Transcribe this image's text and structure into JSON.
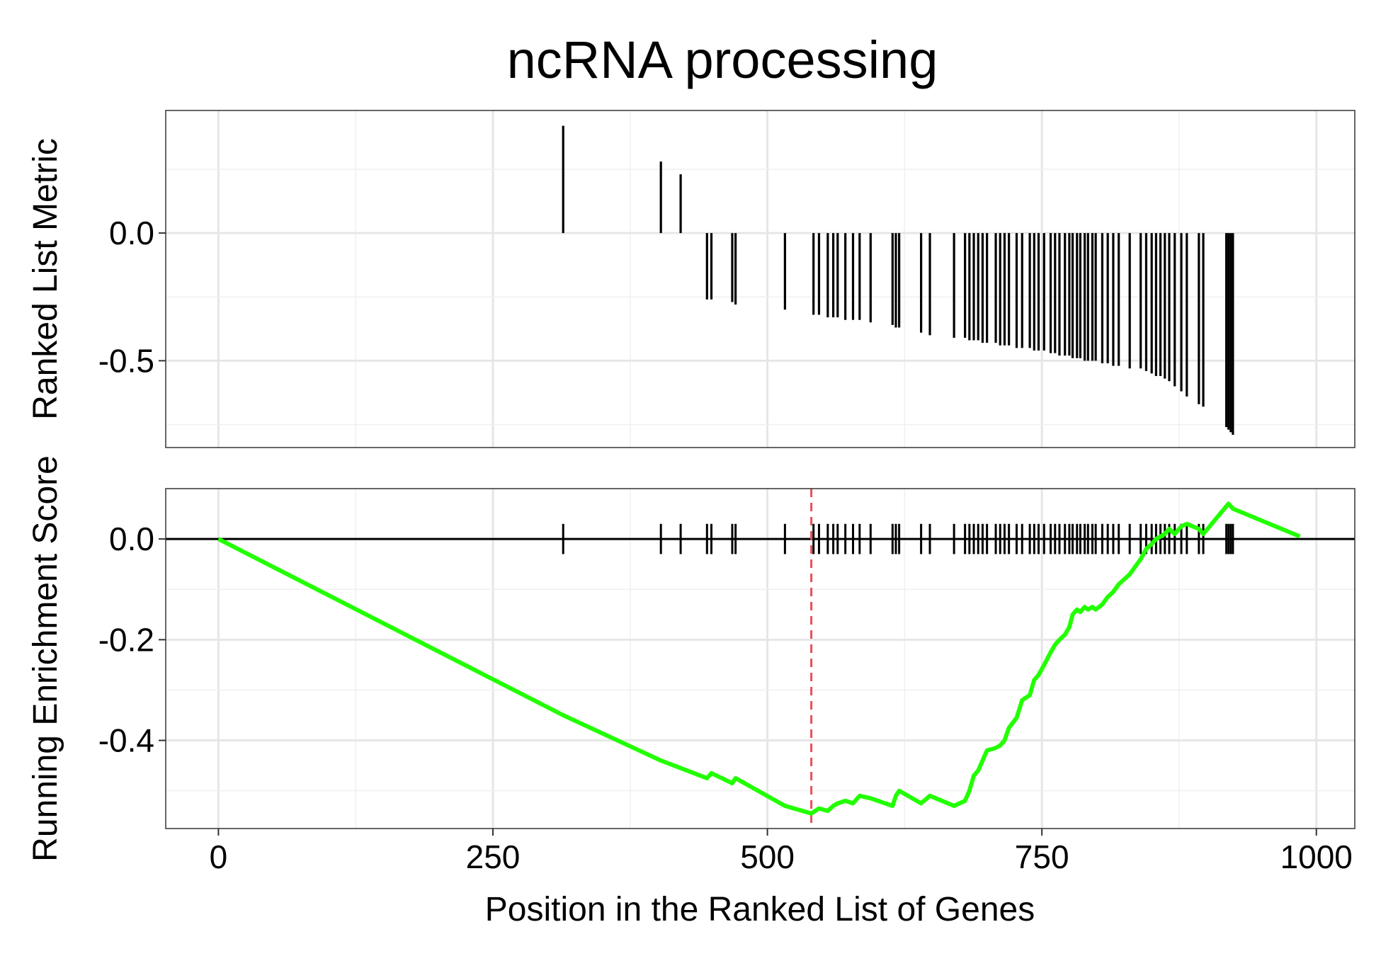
{
  "chart_data": {
    "title": "ncRNA processing",
    "xlabel": "Position in the Ranked List of Genes",
    "xlim": [
      -48,
      1035
    ],
    "x_ticks": [
      0,
      250,
      500,
      750,
      1000
    ],
    "x_tick_labels": [
      "0",
      "250",
      "500",
      "750",
      "1000"
    ],
    "grid": true,
    "panels": [
      {
        "name": "ranked-list-metric",
        "type": "bar",
        "ylabel": "Ranked List Metric",
        "ylim": [
          -0.84,
          0.48
        ],
        "y_ticks": [
          0.0,
          -0.5
        ],
        "y_tick_labels": [
          "0.0",
          "-0.5"
        ],
        "bars": [
          {
            "x": 314,
            "y": 0.42
          },
          {
            "x": 403,
            "y": 0.28
          },
          {
            "x": 421,
            "y": 0.23
          },
          {
            "x": 445,
            "y": -0.26
          },
          {
            "x": 449,
            "y": -0.26
          },
          {
            "x": 468,
            "y": -0.27
          },
          {
            "x": 471,
            "y": -0.28
          },
          {
            "x": 516,
            "y": -0.3
          },
          {
            "x": 542,
            "y": -0.32
          },
          {
            "x": 547,
            "y": -0.32
          },
          {
            "x": 555,
            "y": -0.33
          },
          {
            "x": 560,
            "y": -0.33
          },
          {
            "x": 564,
            "y": -0.33
          },
          {
            "x": 571,
            "y": -0.34
          },
          {
            "x": 578,
            "y": -0.34
          },
          {
            "x": 584,
            "y": -0.34
          },
          {
            "x": 594,
            "y": -0.35
          },
          {
            "x": 614,
            "y": -0.36
          },
          {
            "x": 617,
            "y": -0.37
          },
          {
            "x": 620,
            "y": -0.37
          },
          {
            "x": 640,
            "y": -0.39
          },
          {
            "x": 648,
            "y": -0.4
          },
          {
            "x": 670,
            "y": -0.41
          },
          {
            "x": 680,
            "y": -0.41
          },
          {
            "x": 684,
            "y": -0.42
          },
          {
            "x": 688,
            "y": -0.42
          },
          {
            "x": 692,
            "y": -0.42
          },
          {
            "x": 696,
            "y": -0.43
          },
          {
            "x": 700,
            "y": -0.43
          },
          {
            "x": 708,
            "y": -0.43
          },
          {
            "x": 712,
            "y": -0.44
          },
          {
            "x": 716,
            "y": -0.44
          },
          {
            "x": 720,
            "y": -0.44
          },
          {
            "x": 727,
            "y": -0.45
          },
          {
            "x": 732,
            "y": -0.45
          },
          {
            "x": 739,
            "y": -0.45
          },
          {
            "x": 743,
            "y": -0.46
          },
          {
            "x": 747,
            "y": -0.46
          },
          {
            "x": 752,
            "y": -0.46
          },
          {
            "x": 758,
            "y": -0.47
          },
          {
            "x": 762,
            "y": -0.47
          },
          {
            "x": 766,
            "y": -0.48
          },
          {
            "x": 771,
            "y": -0.48
          },
          {
            "x": 775,
            "y": -0.48
          },
          {
            "x": 778,
            "y": -0.49
          },
          {
            "x": 782,
            "y": -0.49
          },
          {
            "x": 785,
            "y": -0.49
          },
          {
            "x": 789,
            "y": -0.5
          },
          {
            "x": 792,
            "y": -0.5
          },
          {
            "x": 796,
            "y": -0.5
          },
          {
            "x": 799,
            "y": -0.5
          },
          {
            "x": 805,
            "y": -0.51
          },
          {
            "x": 810,
            "y": -0.51
          },
          {
            "x": 815,
            "y": -0.52
          },
          {
            "x": 820,
            "y": -0.52
          },
          {
            "x": 830,
            "y": -0.53
          },
          {
            "x": 840,
            "y": -0.53
          },
          {
            "x": 845,
            "y": -0.54
          },
          {
            "x": 850,
            "y": -0.55
          },
          {
            "x": 854,
            "y": -0.56
          },
          {
            "x": 858,
            "y": -0.56
          },
          {
            "x": 862,
            "y": -0.57
          },
          {
            "x": 866,
            "y": -0.58
          },
          {
            "x": 871,
            "y": -0.6
          },
          {
            "x": 877,
            "y": -0.62
          },
          {
            "x": 882,
            "y": -0.64
          },
          {
            "x": 893,
            "y": -0.67
          },
          {
            "x": 897,
            "y": -0.68
          },
          {
            "x": 918,
            "y": -0.76
          },
          {
            "x": 920,
            "y": -0.77
          },
          {
            "x": 922,
            "y": -0.78
          },
          {
            "x": 924,
            "y": -0.79
          }
        ]
      },
      {
        "name": "running-enrichment-score",
        "type": "line",
        "ylabel": "Running Enrichment Score",
        "ylim": [
          -0.575,
          0.1
        ],
        "y_ticks": [
          0.0,
          -0.2,
          -0.4
        ],
        "y_tick_labels": [
          "0.0",
          "-0.2",
          "-0.4"
        ],
        "series": [
          {
            "color": "#22ff00",
            "x": [
              0,
              314,
              403,
              421,
              445,
              449,
              468,
              471,
              516,
              540,
              547,
              555,
              560,
              564,
              571,
              578,
              584,
              594,
              614,
              617,
              620,
              640,
              648,
              670,
              680,
              684,
              688,
              692,
              696,
              700,
              708,
              712,
              716,
              720,
              727,
              732,
              739,
              743,
              747,
              752,
              758,
              762,
              766,
              771,
              775,
              778,
              782,
              785,
              789,
              792,
              796,
              799,
              805,
              810,
              815,
              820,
              830,
              840,
              845,
              850,
              854,
              858,
              862,
              866,
              871,
              877,
              882,
              893,
              897,
              918,
              920,
              922,
              924,
              985
            ],
            "y": [
              0.0,
              -0.35,
              -0.44,
              -0.455,
              -0.475,
              -0.465,
              -0.485,
              -0.475,
              -0.53,
              -0.545,
              -0.535,
              -0.54,
              -0.53,
              -0.525,
              -0.52,
              -0.525,
              -0.51,
              -0.515,
              -0.53,
              -0.51,
              -0.5,
              -0.525,
              -0.51,
              -0.53,
              -0.52,
              -0.5,
              -0.47,
              -0.46,
              -0.44,
              -0.42,
              -0.415,
              -0.41,
              -0.4,
              -0.375,
              -0.355,
              -0.32,
              -0.31,
              -0.28,
              -0.27,
              -0.25,
              -0.225,
              -0.21,
              -0.2,
              -0.19,
              -0.175,
              -0.15,
              -0.14,
              -0.145,
              -0.135,
              -0.14,
              -0.135,
              -0.14,
              -0.13,
              -0.115,
              -0.105,
              -0.09,
              -0.07,
              -0.04,
              -0.02,
              -0.01,
              0.0,
              0.005,
              0.01,
              0.02,
              0.01,
              0.025,
              0.03,
              0.02,
              0.01,
              0.065,
              0.07,
              0.065,
              0.06,
              0.005
            ]
          }
        ],
        "hits_x": [
          314,
          403,
          421,
          445,
          449,
          468,
          471,
          516,
          542,
          547,
          555,
          560,
          564,
          571,
          578,
          584,
          594,
          614,
          617,
          620,
          640,
          648,
          670,
          680,
          684,
          688,
          692,
          696,
          700,
          708,
          712,
          716,
          720,
          727,
          732,
          739,
          743,
          747,
          752,
          758,
          762,
          766,
          771,
          775,
          778,
          782,
          785,
          789,
          792,
          796,
          799,
          805,
          810,
          815,
          820,
          830,
          840,
          845,
          850,
          854,
          858,
          862,
          866,
          871,
          877,
          882,
          893,
          897,
          918,
          920,
          922,
          924
        ],
        "hit_tick_range": [
          -0.03,
          0.03
        ],
        "max_deviation_x": 540,
        "max_deviation_color": "#e8505a"
      }
    ]
  }
}
